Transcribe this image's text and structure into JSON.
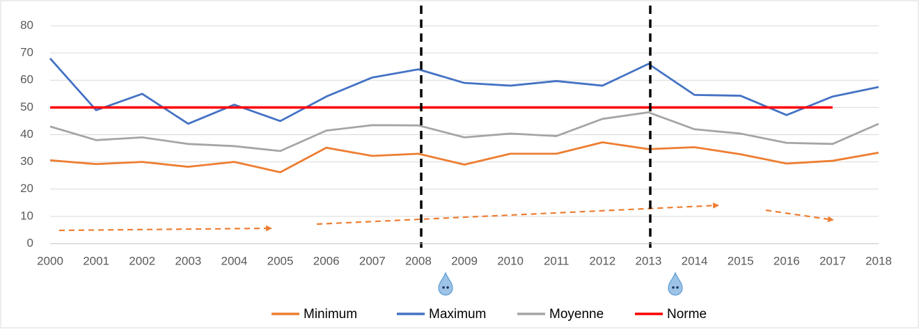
{
  "chart_data": {
    "type": "line",
    "categories": [
      "2000",
      "2001",
      "2002",
      "2003",
      "2004",
      "2005",
      "2006",
      "2007",
      "2008",
      "2009",
      "2010",
      "2011",
      "2012",
      "2013",
      "2014",
      "2015",
      "2016",
      "2017",
      "2018"
    ],
    "series": [
      {
        "name": "Minimum",
        "color": "#ed7d31",
        "values": [
          30.6,
          29.2,
          30,
          28.2,
          30,
          26.2,
          35.2,
          32.2,
          33,
          29,
          33,
          33,
          37.2,
          34.7,
          35.4,
          32.8,
          29.4,
          30.4,
          33.4
        ]
      },
      {
        "name": "Maximum",
        "color": "#4472c4",
        "values": [
          68,
          49,
          55,
          44,
          51,
          45,
          54,
          61,
          64,
          59,
          58,
          59.7,
          58,
          66,
          54.6,
          54.3,
          47.2,
          54,
          57.5
        ]
      },
      {
        "name": "Moyenne",
        "color": "#a5a5a5",
        "values": [
          43,
          38,
          39,
          36.6,
          35.8,
          34,
          41.5,
          43.5,
          43.4,
          39,
          40.4,
          39.5,
          45.8,
          48.2,
          42,
          40.4,
          37,
          36.6,
          44
        ]
      },
      {
        "name": "Norme",
        "color": "#ff0000",
        "values": [
          50,
          50,
          50,
          50,
          50,
          50,
          50,
          50,
          50,
          50,
          50,
          50,
          50,
          50,
          50,
          50,
          50,
          50,
          null
        ]
      }
    ],
    "ylim": [
      0,
      80
    ],
    "yticks": [
      0,
      10,
      20,
      30,
      40,
      50,
      60,
      70,
      80
    ],
    "grid": true,
    "legend": "bottom"
  }
}
